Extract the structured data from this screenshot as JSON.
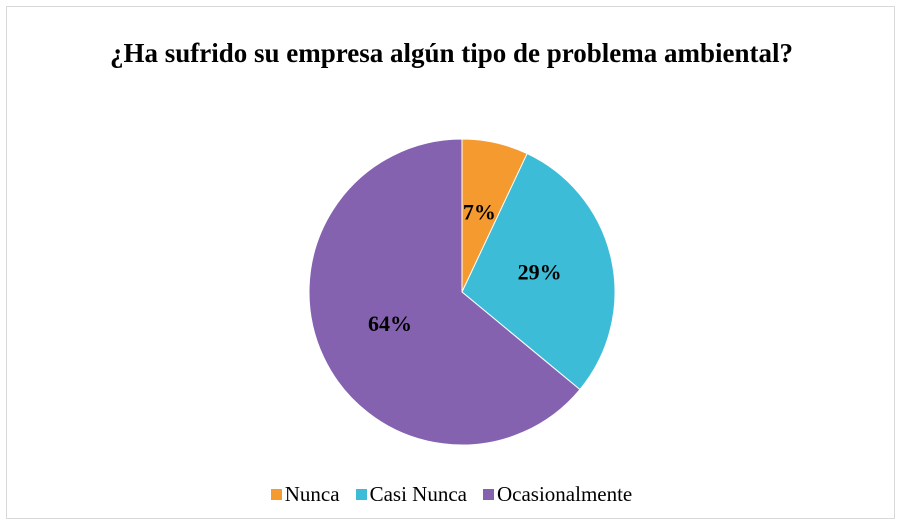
{
  "chart_data": {
    "type": "pie",
    "title": "¿Ha sufrido su empresa algún tipo de problema ambiental?",
    "categories": [
      "Nunca",
      "Casi Nunca",
      "Ocasionalmente"
    ],
    "values": [
      7,
      29,
      64
    ],
    "value_labels": [
      "7%",
      "29%",
      "64%"
    ],
    "colors": [
      "#f59a2e",
      "#3cbcd6",
      "#8462b0"
    ],
    "legend": "bottom"
  }
}
